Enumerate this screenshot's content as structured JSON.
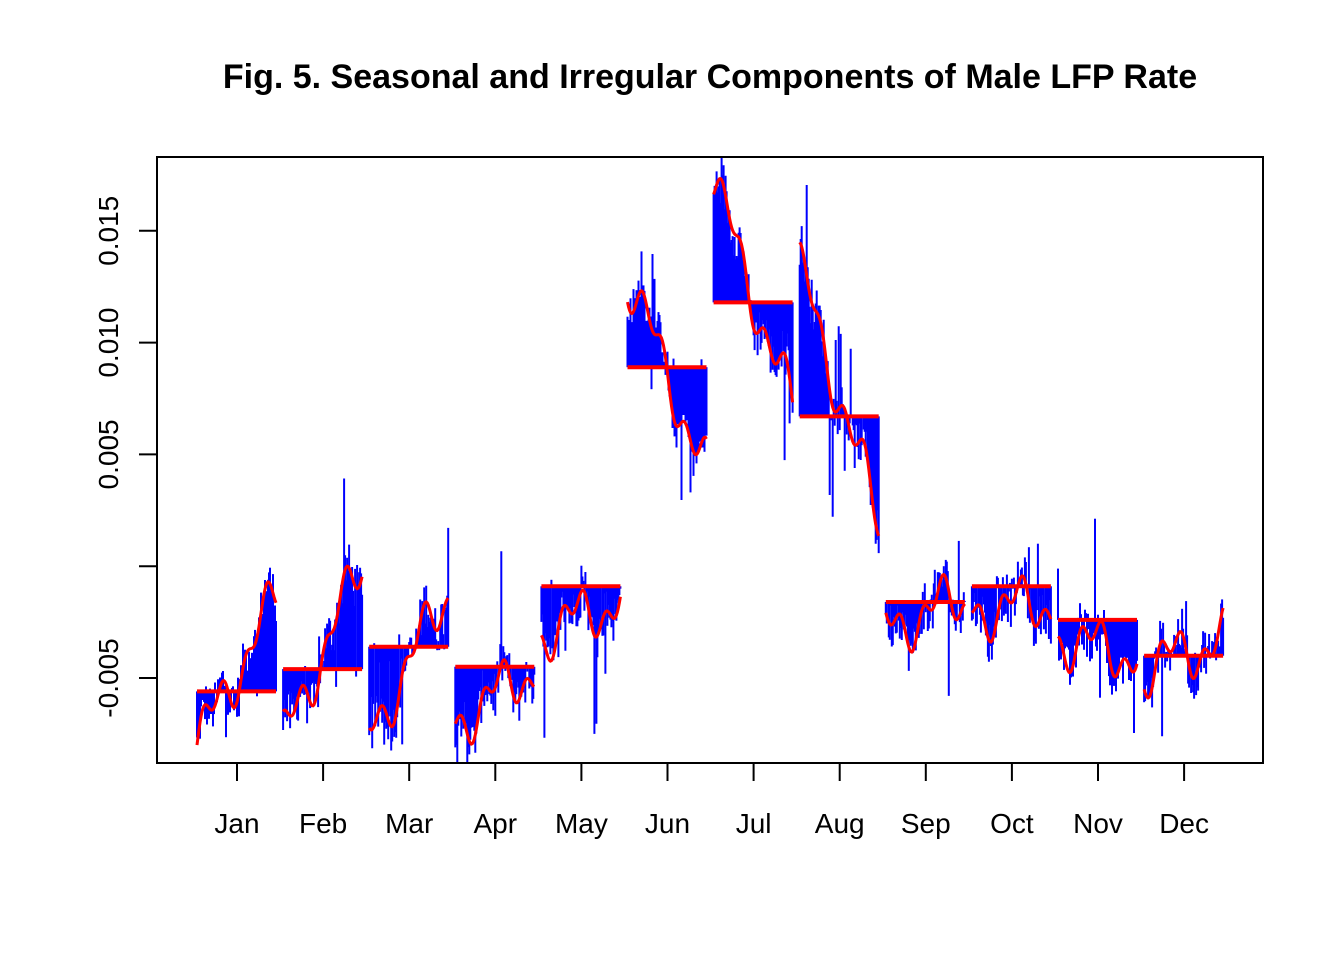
{
  "chart_data": {
    "type": "line",
    "title": "Fig. 5. Seasonal and Irregular Components of Male LFP Rate",
    "xlabel": "",
    "ylabel": "",
    "ylim": [
      -0.0088,
      0.0183
    ],
    "y_ticks": [
      -0.005,
      0.0,
      0.005,
      0.01,
      0.015
    ],
    "y_tick_labels": [
      "-0.005",
      "",
      "0.005",
      "0.010",
      "0.015"
    ],
    "categories": [
      "Jan",
      "Feb",
      "Mar",
      "Apr",
      "May",
      "Jun",
      "Jul",
      "Aug",
      "Sep",
      "Oct",
      "Nov",
      "Dec"
    ],
    "seasonal_means": [
      -0.0056,
      -0.0046,
      -0.0036,
      -0.0045,
      -0.0009,
      0.0089,
      0.0118,
      0.0067,
      -0.0016,
      -0.0009,
      -0.0024,
      -0.004
    ],
    "seasonal_start": [
      -0.008,
      -0.0078,
      -0.0076,
      -0.007,
      -0.003,
      0.013,
      0.0172,
      0.0133,
      -0.0028,
      -0.002,
      -0.0032,
      -0.0046
    ],
    "seasonal_end": [
      -0.0015,
      0.0001,
      -0.0011,
      -0.0045,
      -0.0015,
      0.0042,
      0.007,
      0.002,
      -0.0014,
      -0.0016,
      -0.004,
      -0.0032
    ],
    "colors": {
      "irregular": "#0000ff",
      "seasonal": "#ff0000",
      "mean": "#ff0000"
    },
    "grid": false,
    "legend": "none"
  }
}
